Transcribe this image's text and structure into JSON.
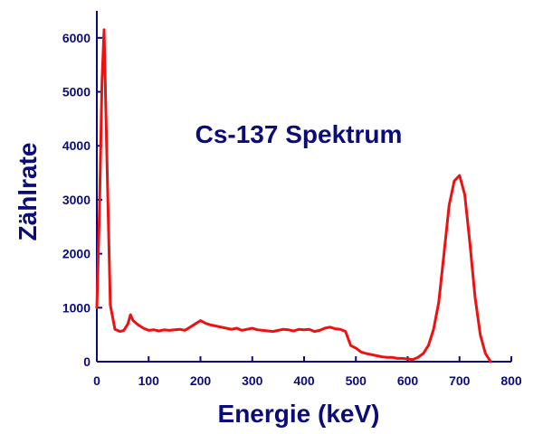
{
  "colors": {
    "text": "#0b0b7a",
    "axis": "#0b0b7a",
    "series": "#ee1111",
    "background": "#ffffff"
  },
  "chart_data": {
    "type": "line",
    "title": "Cs-137 Spektrum",
    "xlabel": "Energie (keV)",
    "ylabel": "Zählrate",
    "xlim": [
      0,
      800
    ],
    "ylim": [
      0,
      6500
    ],
    "xticks": [
      0,
      100,
      200,
      300,
      400,
      500,
      600,
      700,
      800
    ],
    "yticks": [
      0,
      1000,
      2000,
      3000,
      4000,
      5000,
      6000
    ],
    "grid": false,
    "legend": "none",
    "series": [
      {
        "x": [
          0,
          5,
          10,
          14,
          20,
          26,
          35,
          45,
          52,
          60,
          65,
          70,
          80,
          90,
          100,
          110,
          120,
          130,
          140,
          150,
          160,
          170,
          180,
          190,
          200,
          210,
          220,
          230,
          240,
          250,
          260,
          270,
          280,
          290,
          300,
          310,
          320,
          330,
          340,
          350,
          360,
          370,
          380,
          390,
          400,
          410,
          420,
          430,
          440,
          450,
          460,
          470,
          480,
          490,
          500,
          510,
          520,
          530,
          540,
          550,
          560,
          570,
          580,
          590,
          600,
          610,
          620,
          630,
          640,
          650,
          660,
          670,
          680,
          690,
          700,
          710,
          720,
          730,
          740,
          750,
          760
        ],
        "y": [
          1000,
          2800,
          5200,
          6150,
          3500,
          1050,
          600,
          560,
          580,
          700,
          870,
          760,
          680,
          620,
          580,
          590,
          570,
          590,
          580,
          590,
          600,
          580,
          640,
          700,
          760,
          710,
          680,
          660,
          640,
          620,
          600,
          620,
          580,
          600,
          620,
          590,
          580,
          570,
          560,
          580,
          600,
          590,
          570,
          600,
          590,
          600,
          560,
          580,
          620,
          640,
          610,
          600,
          560,
          300,
          250,
          180,
          150,
          130,
          110,
          90,
          80,
          80,
          60,
          60,
          50,
          40,
          80,
          150,
          300,
          600,
          1100,
          2000,
          2900,
          3350,
          3450,
          3100,
          2200,
          1200,
          500,
          150,
          0
        ]
      }
    ]
  }
}
